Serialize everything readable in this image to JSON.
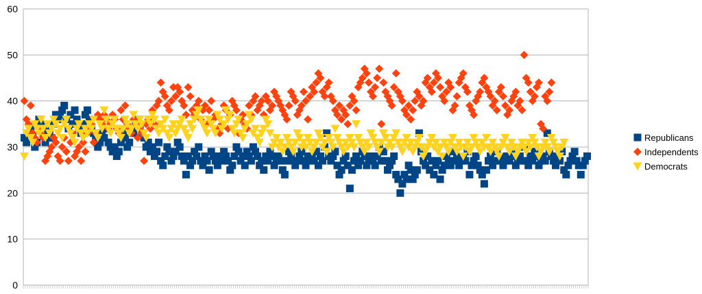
{
  "chart_data": {
    "type": "scatter",
    "ylim": [
      0,
      60
    ],
    "yticks": [
      0,
      10,
      20,
      30,
      40,
      50,
      60
    ],
    "grid": true,
    "legend_position": "right",
    "series": [
      {
        "name": "Republicans",
        "color": "#004586",
        "marker": "square",
        "values": [
          32,
          31,
          33,
          34,
          32,
          30,
          31,
          36,
          35,
          33,
          31,
          34,
          33,
          32,
          35,
          37,
          36,
          37,
          38,
          39,
          36,
          34,
          37,
          35,
          38,
          36,
          34,
          33,
          35,
          37,
          38,
          36,
          34,
          33,
          32,
          30,
          31,
          33,
          32,
          34,
          31,
          30,
          29,
          30,
          28,
          29,
          31,
          33,
          32,
          30,
          31,
          34,
          33,
          35,
          36,
          34,
          33,
          32,
          30,
          31,
          29,
          30,
          28,
          29,
          31,
          27,
          26,
          28,
          30,
          29,
          27,
          28,
          29,
          31,
          30,
          28,
          27,
          24,
          28,
          26,
          27,
          29,
          28,
          30,
          27,
          26,
          28,
          27,
          25,
          29,
          28,
          27,
          26,
          28,
          27,
          29,
          28,
          27,
          25,
          26,
          28,
          30,
          29,
          27,
          28,
          26,
          29,
          28,
          27,
          30,
          29,
          28,
          26,
          27,
          25,
          28,
          27,
          29,
          28,
          26,
          27,
          28,
          27,
          25,
          24,
          27,
          29,
          28,
          27,
          26,
          27,
          28,
          29,
          27,
          26,
          28,
          27,
          28,
          27,
          29,
          26,
          28,
          27,
          30,
          33,
          28,
          27,
          28,
          29,
          26,
          24,
          25,
          27,
          28,
          26,
          21,
          25,
          27,
          28,
          26,
          27,
          29,
          28,
          26,
          27,
          28,
          27,
          26,
          28,
          30,
          27,
          29,
          27,
          25,
          26,
          27,
          28,
          24,
          23,
          20,
          22,
          24,
          23,
          26,
          25,
          23,
          24,
          25,
          33,
          29,
          27,
          26,
          28,
          25,
          27,
          24,
          26,
          27,
          23,
          25,
          26,
          28,
          27,
          26,
          29,
          27,
          28,
          26,
          27,
          28,
          27,
          29,
          24,
          26,
          27,
          28,
          26,
          25,
          24,
          22,
          25,
          27,
          28,
          26,
          27,
          29,
          27,
          28,
          26,
          27,
          28,
          27,
          29,
          28,
          26,
          27,
          28,
          27,
          30,
          27,
          26,
          28,
          27,
          29,
          28,
          26,
          27,
          28,
          27,
          33,
          29,
          28,
          27,
          26,
          28,
          27,
          29,
          25,
          24,
          26,
          27,
          28,
          29,
          27,
          26,
          24,
          26,
          27,
          28
        ]
      },
      {
        "name": "Independents",
        "color": "#ff420e",
        "marker": "diamond",
        "values": [
          40,
          36,
          35,
          39,
          33,
          32,
          31,
          34,
          33,
          32,
          27,
          28,
          29,
          30,
          32,
          31,
          28,
          27,
          30,
          32,
          29,
          27,
          31,
          33,
          28,
          29,
          30,
          27,
          31,
          29,
          33,
          34,
          35,
          31,
          33,
          37,
          36,
          35,
          37,
          36,
          34,
          35,
          37,
          36,
          34,
          33,
          38,
          36,
          39,
          35,
          34,
          33,
          36,
          35,
          32,
          34,
          33,
          27,
          35,
          36,
          34,
          38,
          35,
          39,
          40,
          44,
          42,
          41,
          39,
          38,
          40,
          43,
          41,
          43,
          42,
          40,
          39,
          37,
          43,
          41,
          38,
          37,
          39,
          40,
          36,
          38,
          39,
          35,
          38,
          40,
          36,
          37,
          34,
          33,
          35,
          39,
          38,
          34,
          37,
          40,
          39,
          38,
          33,
          36,
          37,
          35,
          34,
          39,
          37,
          40,
          41,
          38,
          39,
          40,
          37,
          41,
          40,
          38,
          39,
          42,
          41,
          40,
          39,
          38,
          37,
          36,
          39,
          42,
          41,
          40,
          37,
          38,
          39,
          42,
          40,
          36,
          41,
          43,
          42,
          44,
          46,
          45,
          42,
          41,
          43,
          44,
          41,
          40,
          38,
          37,
          39,
          36,
          38,
          37,
          35,
          39,
          41,
          40,
          38,
          43,
          44,
          45,
          47,
          46,
          44,
          42,
          41,
          43,
          45,
          47,
          35,
          44,
          42,
          41,
          40,
          39,
          43,
          46,
          42,
          41,
          40,
          38,
          37,
          39,
          36,
          38,
          40,
          42,
          41,
          39,
          40,
          44,
          45,
          43,
          42,
          44,
          46,
          45,
          43,
          41,
          40,
          42,
          44,
          43,
          38,
          39,
          41,
          44,
          45,
          46,
          43,
          42,
          39,
          38,
          37,
          40,
          41,
          42,
          44,
          45,
          43,
          42,
          41,
          39,
          40,
          38,
          42,
          43,
          41,
          39,
          37,
          38,
          40,
          41,
          42,
          39,
          40,
          38,
          50,
          45,
          44,
          42,
          40,
          41,
          43,
          44,
          35,
          34,
          41,
          40,
          42,
          44
        ]
      },
      {
        "name": "Democrats",
        "color": "#ffd320",
        "marker": "triangle-down",
        "values": [
          28,
          33,
          34,
          32,
          31,
          35,
          34,
          33,
          36,
          34,
          32,
          35,
          33,
          34,
          36,
          35,
          33,
          34,
          32,
          35,
          36,
          34,
          33,
          32,
          31,
          34,
          35,
          33,
          32,
          34,
          33,
          35,
          34,
          36,
          33,
          32,
          35,
          34,
          38,
          36,
          34,
          33,
          35,
          36,
          34,
          33,
          32,
          34,
          36,
          35,
          33,
          34,
          37,
          35,
          34,
          36,
          35,
          33,
          32,
          36,
          35,
          37,
          36,
          34,
          33,
          35,
          34,
          36,
          33,
          32,
          34,
          35,
          33,
          34,
          35,
          36,
          34,
          33,
          32,
          35,
          34,
          36,
          37,
          38,
          36,
          35,
          34,
          33,
          36,
          35,
          34,
          33,
          37,
          36,
          34,
          35,
          38,
          36,
          37,
          34,
          33,
          35,
          36,
          33,
          32,
          34,
          35,
          37,
          36,
          33,
          34,
          32,
          31,
          33,
          34,
          36,
          35,
          33,
          30,
          31,
          32,
          30,
          31,
          29,
          30,
          32,
          31,
          30,
          29,
          31,
          33,
          32,
          30,
          31,
          30,
          32,
          31,
          29,
          30,
          31,
          33,
          32,
          30,
          31,
          29,
          32,
          31,
          30,
          34,
          32,
          31,
          30,
          29,
          31,
          30,
          32,
          31,
          30,
          35,
          32,
          31,
          30,
          29,
          31,
          30,
          33,
          32,
          31,
          30,
          29,
          31,
          33,
          32,
          30,
          31,
          30,
          32,
          33,
          31,
          30,
          29,
          31,
          32,
          30,
          31,
          29,
          30,
          31,
          32,
          30,
          28,
          29,
          30,
          31,
          32,
          30,
          31,
          29,
          30,
          28,
          31,
          30,
          29,
          31,
          32,
          30,
          29,
          31,
          30,
          28,
          30,
          31,
          29,
          30,
          32,
          31,
          30,
          29,
          31,
          30,
          32,
          30,
          29,
          31,
          30,
          29,
          28,
          30,
          31,
          32,
          30,
          29,
          31,
          30,
          28,
          29,
          30,
          31,
          30,
          29,
          31,
          30,
          32,
          31,
          30,
          28,
          29,
          30,
          31,
          30,
          29,
          32,
          31,
          30,
          29,
          28,
          30,
          31
        ]
      }
    ]
  }
}
